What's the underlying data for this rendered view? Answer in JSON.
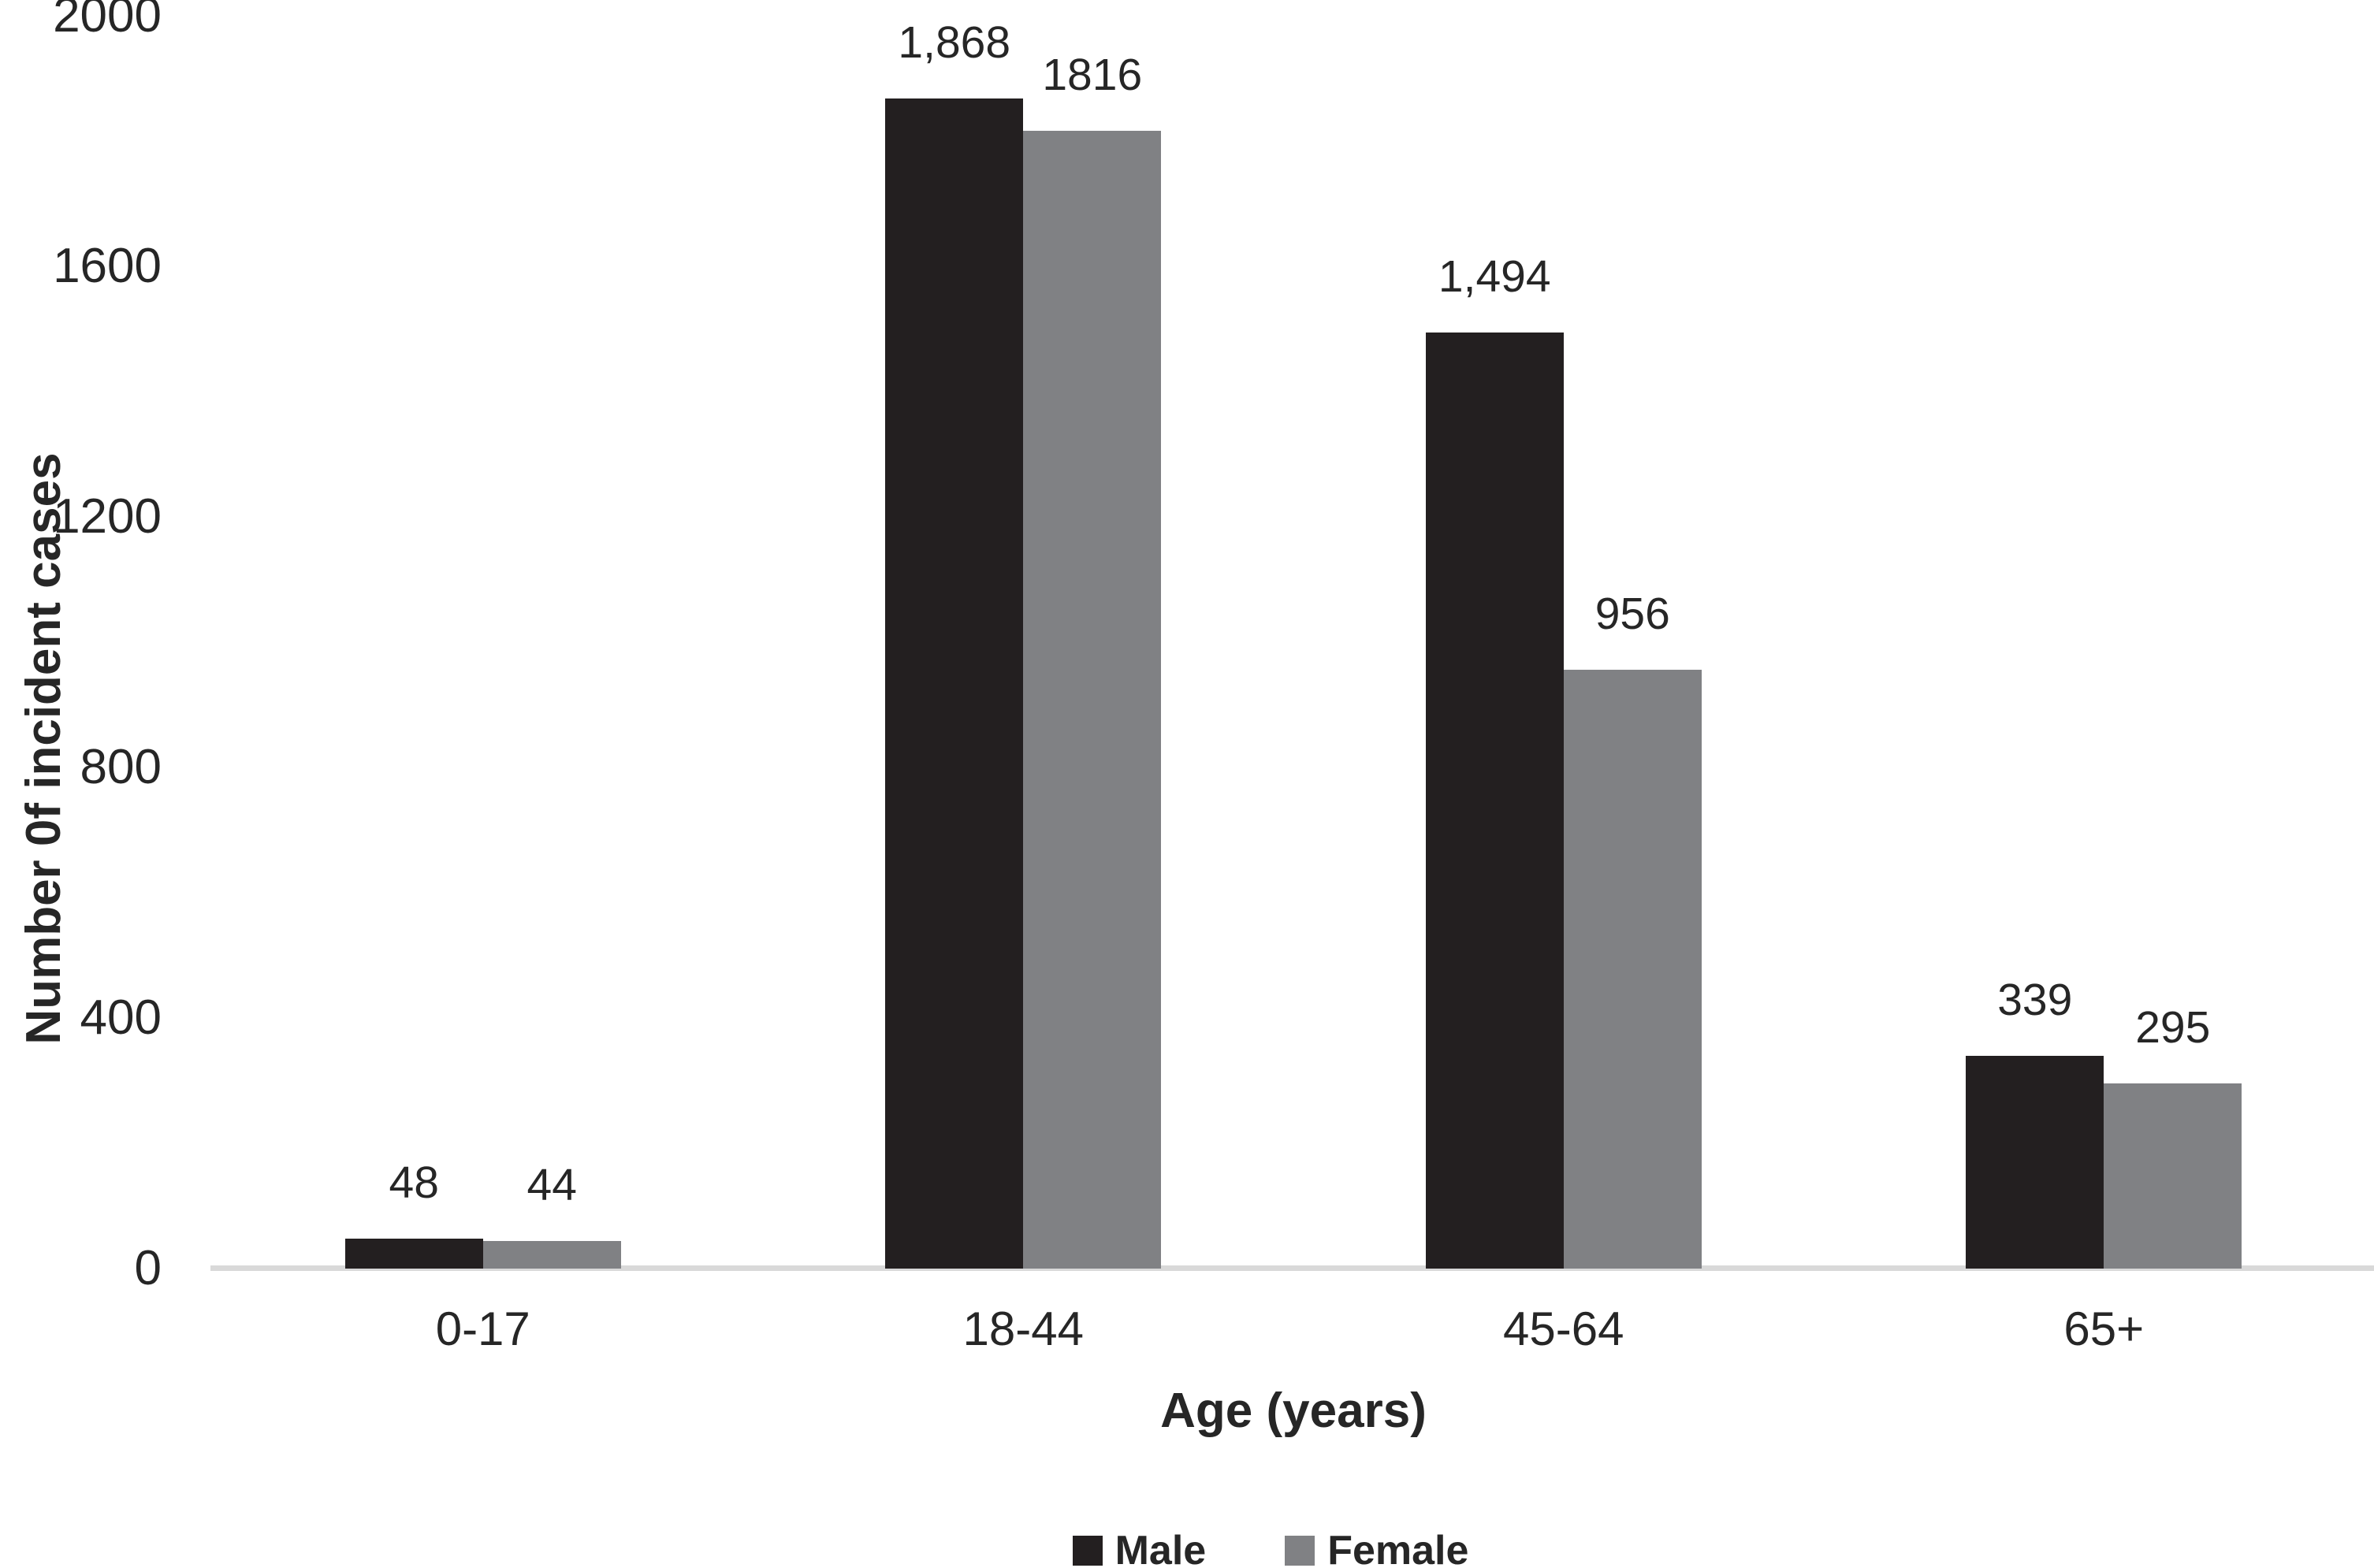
{
  "chart_data": {
    "type": "bar",
    "title": "",
    "categories": [
      "0-17",
      "18-44",
      "45-64",
      "65+"
    ],
    "series": [
      {
        "name": "Male",
        "color": "#231f20",
        "values": [
          48,
          1868,
          1494,
          339
        ],
        "labels": [
          "48",
          "1,868",
          "1,494",
          "339"
        ]
      },
      {
        "name": "Female",
        "color": "#808184",
        "values": [
          44,
          1816,
          956,
          295
        ],
        "labels": [
          "44",
          "1816",
          "956",
          "295"
        ]
      }
    ],
    "xlabel": "Age (years)",
    "ylabel": "Number 0f incident cases",
    "ylim": [
      0,
      2000
    ],
    "yticks": [
      "0",
      "400",
      "800",
      "1200",
      "1600",
      "2000"
    ],
    "grid": false,
    "legend_position": "bottom-center",
    "axis_line_color": "#d9d9d9",
    "text_color": "#262626",
    "background_color": "#ffffff"
  }
}
